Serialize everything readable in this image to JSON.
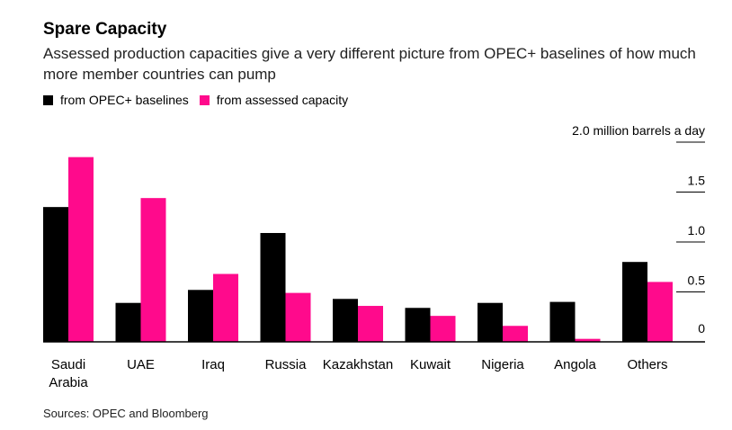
{
  "title": "Spare Capacity",
  "subtitle": "Assessed production capacities give a very different picture from OPEC+ baselines of how much more member countries can pump",
  "source": "Sources: OPEC and Bloomberg",
  "colors": {
    "baseline": "#000000",
    "assessed": "#ff0a8c"
  },
  "chart_data": {
    "type": "bar",
    "title": "Spare Capacity",
    "ylabel": "2.0 million barrels a day",
    "ylim": [
      0,
      2.0
    ],
    "yticks": [
      0,
      0.5,
      1.0,
      1.5,
      2.0
    ],
    "ytick_labels": [
      "0",
      "0.5",
      "1.0",
      "1.5",
      "2.0 million barrels a day"
    ],
    "categories": [
      "Saudi Arabia",
      "UAE",
      "Iraq",
      "Russia",
      "Kazakhstan",
      "Kuwait",
      "Nigeria",
      "Angola",
      "Others"
    ],
    "series": [
      {
        "name": "from OPEC+ baselines",
        "values": [
          1.35,
          0.39,
          0.52,
          1.09,
          0.43,
          0.34,
          0.39,
          0.4,
          0.8
        ]
      },
      {
        "name": "from assessed capacity",
        "values": [
          1.85,
          1.44,
          0.68,
          0.49,
          0.36,
          0.26,
          0.16,
          0.03,
          0.6
        ]
      }
    ],
    "legend": "top-left",
    "grid": false
  }
}
